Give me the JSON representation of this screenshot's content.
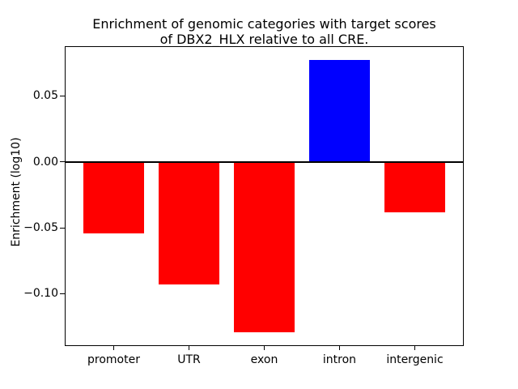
{
  "figure": {
    "title_line1": "Enrichment of genomic categories with target scores",
    "title_line2": "of DBX2_HLX relative to all CRE.",
    "ylabel": "Enrichment (log10)"
  },
  "chart_data": {
    "type": "bar",
    "title": "Enrichment of genomic categories with target scores\nof DBX2_HLX relative to all CRE.",
    "xlabel": "",
    "ylabel": "Enrichment (log10)",
    "categories": [
      "promoter",
      "UTR",
      "exon",
      "intron",
      "intergenic"
    ],
    "values": [
      -0.054,
      -0.093,
      -0.129,
      0.077,
      -0.038
    ],
    "bar_colors": [
      "#ff0000",
      "#ff0000",
      "#ff0000",
      "#0000ff",
      "#ff0000"
    ],
    "color_rule": "negative bars red, positive bars blue",
    "ylim": [
      -0.139,
      0.087
    ],
    "xlim": [
      -0.64,
      4.64
    ],
    "bar_width": 0.8,
    "yticks": [
      0.05,
      0.0,
      -0.05,
      -0.1
    ],
    "ytick_labels": [
      "0.05",
      "0.00",
      "−0.05",
      "−0.10"
    ],
    "zero_line": true,
    "grid": false,
    "legend": null,
    "colors": {
      "positive": "#0000ff",
      "negative": "#ff0000",
      "axis": "#000000",
      "background": "#ffffff"
    }
  }
}
